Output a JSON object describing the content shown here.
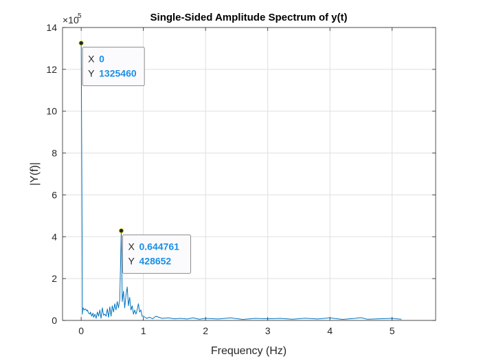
{
  "chart_data": {
    "type": "line",
    "title": "Single-Sided Amplitude Spectrum of y(t)",
    "xlabel": "Frequency (Hz)",
    "ylabel": "|Y(f)|",
    "exponent_label": "×10",
    "exponent_power": "5",
    "xlim": [
      -0.3,
      5.7
    ],
    "ylim": [
      0,
      14
    ],
    "x_ticks": [
      0,
      1,
      2,
      3,
      4,
      5
    ],
    "x_tick_labels": [
      "0",
      "1",
      "2",
      "3",
      "4",
      "5"
    ],
    "y_ticks": [
      0,
      2,
      4,
      6,
      8,
      10,
      12,
      14
    ],
    "y_tick_labels": [
      "0",
      "2",
      "4",
      "6",
      "8",
      "10",
      "12",
      "14"
    ],
    "grid": true,
    "line_color": "#0072BD",
    "series": [
      {
        "x": [
          0,
          0.02,
          0.03,
          0.05,
          0.07,
          0.09,
          0.1,
          0.12,
          0.14,
          0.15,
          0.17,
          0.19,
          0.2,
          0.22,
          0.24,
          0.26,
          0.28,
          0.3,
          0.32,
          0.34,
          0.36,
          0.38,
          0.4,
          0.42,
          0.44,
          0.46,
          0.48,
          0.5,
          0.52,
          0.54,
          0.56,
          0.58,
          0.6,
          0.62,
          0.644761,
          0.66,
          0.68,
          0.7,
          0.72,
          0.74,
          0.76,
          0.78,
          0.8,
          0.82,
          0.84,
          0.86,
          0.88,
          0.9,
          0.92,
          0.94,
          0.96,
          0.98,
          1.0,
          1.05,
          1.1,
          1.15,
          1.2,
          1.3,
          1.4,
          1.5,
          1.6,
          1.7,
          1.8,
          1.9,
          2.0,
          2.2,
          2.4,
          2.6,
          2.8,
          3.0,
          3.2,
          3.4,
          3.6,
          3.8,
          4.0,
          4.2,
          4.4,
          4.5,
          4.6,
          4.8,
          5.0,
          5.1,
          5.15
        ],
        "y": [
          13.2546,
          0.3,
          0.6,
          0.5,
          0.55,
          0.45,
          0.5,
          0.35,
          0.3,
          0.4,
          0.2,
          0.35,
          0.15,
          0.3,
          0.1,
          0.4,
          0.2,
          0.5,
          0.1,
          0.6,
          0.25,
          0.3,
          0.2,
          0.55,
          0.15,
          0.65,
          0.2,
          0.7,
          0.4,
          0.8,
          0.5,
          0.9,
          0.6,
          1.0,
          4.28652,
          0.9,
          1.4,
          0.6,
          1.2,
          1.6,
          0.7,
          1.1,
          0.5,
          0.7,
          0.3,
          0.5,
          0.3,
          0.5,
          0.8,
          0.4,
          0.5,
          0.2,
          0.2,
          0.1,
          0.15,
          0.08,
          0.2,
          0.1,
          0.12,
          0.08,
          0.1,
          0.07,
          0.12,
          0.06,
          0.1,
          0.07,
          0.12,
          0.05,
          0.1,
          0.08,
          0.1,
          0.06,
          0.11,
          0.07,
          0.12,
          0.05,
          0.1,
          0.13,
          0.06,
          0.08,
          0.1,
          0.07,
          0.06
        ]
      }
    ],
    "datatips": [
      {
        "x": 0,
        "y": 13.2546,
        "x_key": "X",
        "x_text": "0",
        "y_key": "Y",
        "y_text": "1325460"
      },
      {
        "x": 0.644761,
        "y": 4.28652,
        "x_key": "X",
        "x_text": "0.644761",
        "y_key": "Y",
        "y_text": "428652"
      }
    ]
  }
}
